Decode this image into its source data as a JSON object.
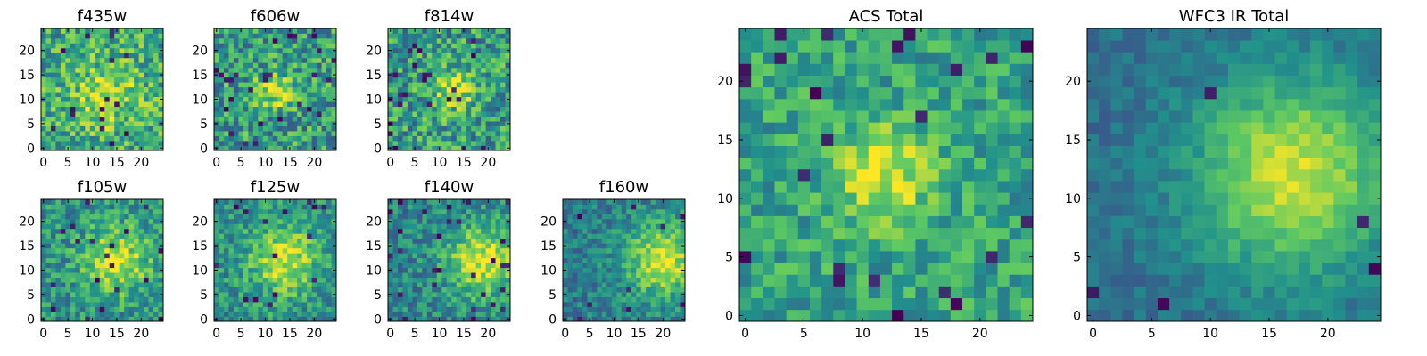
{
  "figure": {
    "colormap": [
      "#440154",
      "#3b528b",
      "#21918c",
      "#5ec962",
      "#fde725"
    ]
  },
  "chart_data": [
    {
      "type": "heatmap",
      "title": "f435w",
      "grid_size": 25,
      "xticks": [
        0,
        5,
        10,
        15,
        20
      ],
      "yticks": [
        0,
        5,
        10,
        15,
        20
      ],
      "pattern": "noise_blob",
      "seed": 11,
      "center": [
        13,
        11
      ],
      "spread": 5.0,
      "noise": 0.48,
      "dark_fraction": 0.03,
      "base": 0.6,
      "amplitude": 0.25
    },
    {
      "type": "heatmap",
      "title": "f606w",
      "grid_size": 25,
      "xticks": [
        0,
        5,
        10,
        15,
        20
      ],
      "yticks": [
        0,
        5,
        10,
        15,
        20
      ],
      "pattern": "noise_blob",
      "seed": 23,
      "center": [
        12,
        12
      ],
      "spread": 2.5,
      "noise": 0.5,
      "dark_fraction": 0.04,
      "base": 0.55,
      "amplitude": 0.4
    },
    {
      "type": "heatmap",
      "title": "f814w",
      "grid_size": 25,
      "xticks": [
        0,
        5,
        10,
        15,
        20
      ],
      "yticks": [
        0,
        5,
        10,
        15,
        20
      ],
      "pattern": "noise_blob",
      "seed": 37,
      "center": [
        13,
        12
      ],
      "spread": 3.0,
      "noise": 0.5,
      "dark_fraction": 0.04,
      "base": 0.55,
      "amplitude": 0.35
    },
    {
      "type": "heatmap",
      "title": "f105w",
      "grid_size": 25,
      "xticks": [
        0,
        5,
        10,
        15,
        20
      ],
      "yticks": [
        0,
        5,
        10,
        15,
        20
      ],
      "pattern": "noise_blob",
      "seed": 41,
      "center": [
        15,
        12
      ],
      "spread": 5.0,
      "noise": 0.38,
      "dark_fraction": 0.03,
      "base": 0.5,
      "amplitude": 0.4
    },
    {
      "type": "heatmap",
      "title": "f125w",
      "grid_size": 25,
      "xticks": [
        0,
        5,
        10,
        15,
        20
      ],
      "yticks": [
        0,
        5,
        10,
        15,
        20
      ],
      "pattern": "noise_blob",
      "seed": 53,
      "center": [
        14,
        12
      ],
      "spread": 5.0,
      "noise": 0.36,
      "dark_fraction": 0.03,
      "base": 0.5,
      "amplitude": 0.42
    },
    {
      "type": "heatmap",
      "title": "f140w",
      "grid_size": 25,
      "xticks": [
        0,
        5,
        10,
        15,
        20
      ],
      "yticks": [
        0,
        5,
        10,
        15,
        20
      ],
      "pattern": "noise_blob",
      "seed": 67,
      "center": [
        19,
        12
      ],
      "spread": 5.5,
      "noise": 0.34,
      "dark_fraction": 0.04,
      "base": 0.45,
      "amplitude": 0.48
    },
    {
      "type": "heatmap",
      "title": "f160w",
      "grid_size": 25,
      "xticks": [
        0,
        5,
        10,
        15,
        20
      ],
      "yticks": [
        0,
        5,
        10,
        15,
        20
      ],
      "pattern": "noise_blob",
      "seed": 79,
      "center": [
        20,
        12
      ],
      "spread": 5.5,
      "noise": 0.3,
      "dark_fraction": 0.02,
      "base": 0.42,
      "amplitude": 0.5
    },
    {
      "type": "heatmap",
      "title": "ACS Total",
      "grid_size": 25,
      "xticks": [
        0,
        5,
        10,
        15,
        20
      ],
      "yticks": [
        0,
        5,
        10,
        15,
        20
      ],
      "pattern": "noise_blob",
      "seed": 97,
      "center": [
        12,
        12
      ],
      "spread": 2.8,
      "noise": 0.34,
      "dark_fraction": 0.04,
      "base": 0.58,
      "amplitude": 0.4
    },
    {
      "type": "heatmap",
      "title": "WFC3 IR Total",
      "grid_size": 25,
      "xticks": [
        0,
        5,
        10,
        15,
        20
      ],
      "yticks": [
        0,
        5,
        10,
        15,
        20
      ],
      "pattern": "noise_blob",
      "seed": 113,
      "center": [
        17,
        12
      ],
      "spread": 6.0,
      "noise": 0.16,
      "dark_fraction": 0.01,
      "base": 0.36,
      "amplitude": 0.56
    }
  ]
}
